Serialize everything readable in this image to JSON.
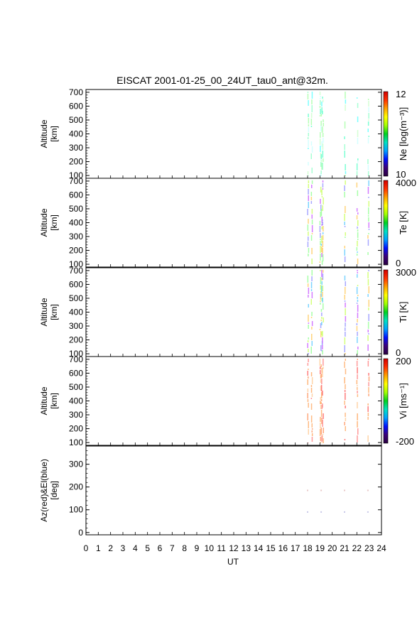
{
  "title": "EISCAT 2001-01-25_00_24UT_tau0_ant@32m.",
  "x_axis": {
    "label": "UT",
    "ticks": [
      "0",
      "1",
      "2",
      "3",
      "4",
      "5",
      "6",
      "7",
      "8",
      "9",
      "10",
      "11",
      "12",
      "13",
      "14",
      "15",
      "16",
      "17",
      "18",
      "19",
      "20",
      "21",
      "22",
      "23",
      "24"
    ],
    "range": [
      0,
      24
    ]
  },
  "colors": {
    "spectrum": [
      "#2a0040",
      "#3a007a",
      "#0010ff",
      "#00a0ff",
      "#00e0c0",
      "#00d020",
      "#a0ff00",
      "#ffff00",
      "#ffa000",
      "#ff3000",
      "#d00000"
    ],
    "stripe_low": [
      "#cc66ff",
      "#9999ff",
      "#66ccff",
      "#99ff99",
      "#ccff66",
      "#ffcc66"
    ],
    "stripe_high": [
      "#ff6666",
      "#ffaa66",
      "#ffcc99",
      "#ff8888",
      "#ffb070",
      "#ff9966"
    ],
    "stripe_mid": [
      "#66ffcc",
      "#99ffcc",
      "#ccffcc",
      "#66ffff",
      "#aaffaa",
      "#ccffff"
    ]
  },
  "chart_data": [
    {
      "type": "heatmap",
      "ylabel": [
        "Altitude",
        "[km]"
      ],
      "yticks": [
        "100",
        "200",
        "300",
        "400",
        "500",
        "600",
        "700"
      ],
      "ylim": [
        80,
        720
      ],
      "colorbar": {
        "label": "Ne [log(m⁻³)]",
        "min": "10",
        "max": "12"
      },
      "palette": "stripe_mid",
      "data_columns_UT": [
        18.0,
        18.3,
        19.0,
        19.1,
        19.2,
        21.0,
        22.0,
        22.9
      ]
    },
    {
      "type": "heatmap",
      "ylabel": [
        "Altitude",
        "[km]"
      ],
      "yticks": [
        "100",
        "200",
        "300",
        "400",
        "500",
        "600",
        "700"
      ],
      "ylim": [
        80,
        720
      ],
      "colorbar": {
        "label": "Te [K]",
        "min": "0",
        "max": "4000"
      },
      "palette": "stripe_low",
      "data_columns_UT": [
        18.0,
        18.3,
        19.0,
        19.1,
        19.2,
        21.0,
        22.0,
        22.9
      ]
    },
    {
      "type": "heatmap",
      "ylabel": [
        "Altitude",
        "[km]"
      ],
      "yticks": [
        "100",
        "200",
        "300",
        "400",
        "500",
        "600",
        "700"
      ],
      "ylim": [
        80,
        720
      ],
      "colorbar": {
        "label": "Ti [K]",
        "min": "0",
        "max": "3000"
      },
      "palette": "stripe_low",
      "data_columns_UT": [
        18.0,
        18.3,
        19.0,
        19.1,
        19.2,
        21.0,
        22.0,
        22.9
      ]
    },
    {
      "type": "heatmap",
      "ylabel": [
        "Altitude",
        "[km]"
      ],
      "yticks": [
        "100",
        "200",
        "300",
        "400",
        "500",
        "600",
        "700"
      ],
      "ylim": [
        80,
        720
      ],
      "colorbar": {
        "label": "Vi [ms⁻¹]",
        "min": "-200",
        "max": "200"
      },
      "palette": "stripe_high",
      "data_columns_UT": [
        18.0,
        18.3,
        19.0,
        19.1,
        19.2,
        21.0,
        22.0,
        22.9
      ]
    },
    {
      "type": "scatter",
      "ylabel": [
        "Az(red)&El(blue)",
        "[deg]"
      ],
      "yticks": [
        "0",
        "100",
        "200",
        "300"
      ],
      "ylim": [
        -10,
        380
      ],
      "series": [
        {
          "name": "Az",
          "color": "#e8c8c8",
          "x": [
            18.0,
            19.1,
            21.0,
            22.9
          ],
          "y": [
            185,
            185,
            185,
            185
          ]
        },
        {
          "name": "El",
          "color": "#c8c8e8",
          "x": [
            18.0,
            19.1,
            21.0,
            22.9
          ],
          "y": [
            90,
            90,
            90,
            90
          ]
        }
      ]
    }
  ]
}
